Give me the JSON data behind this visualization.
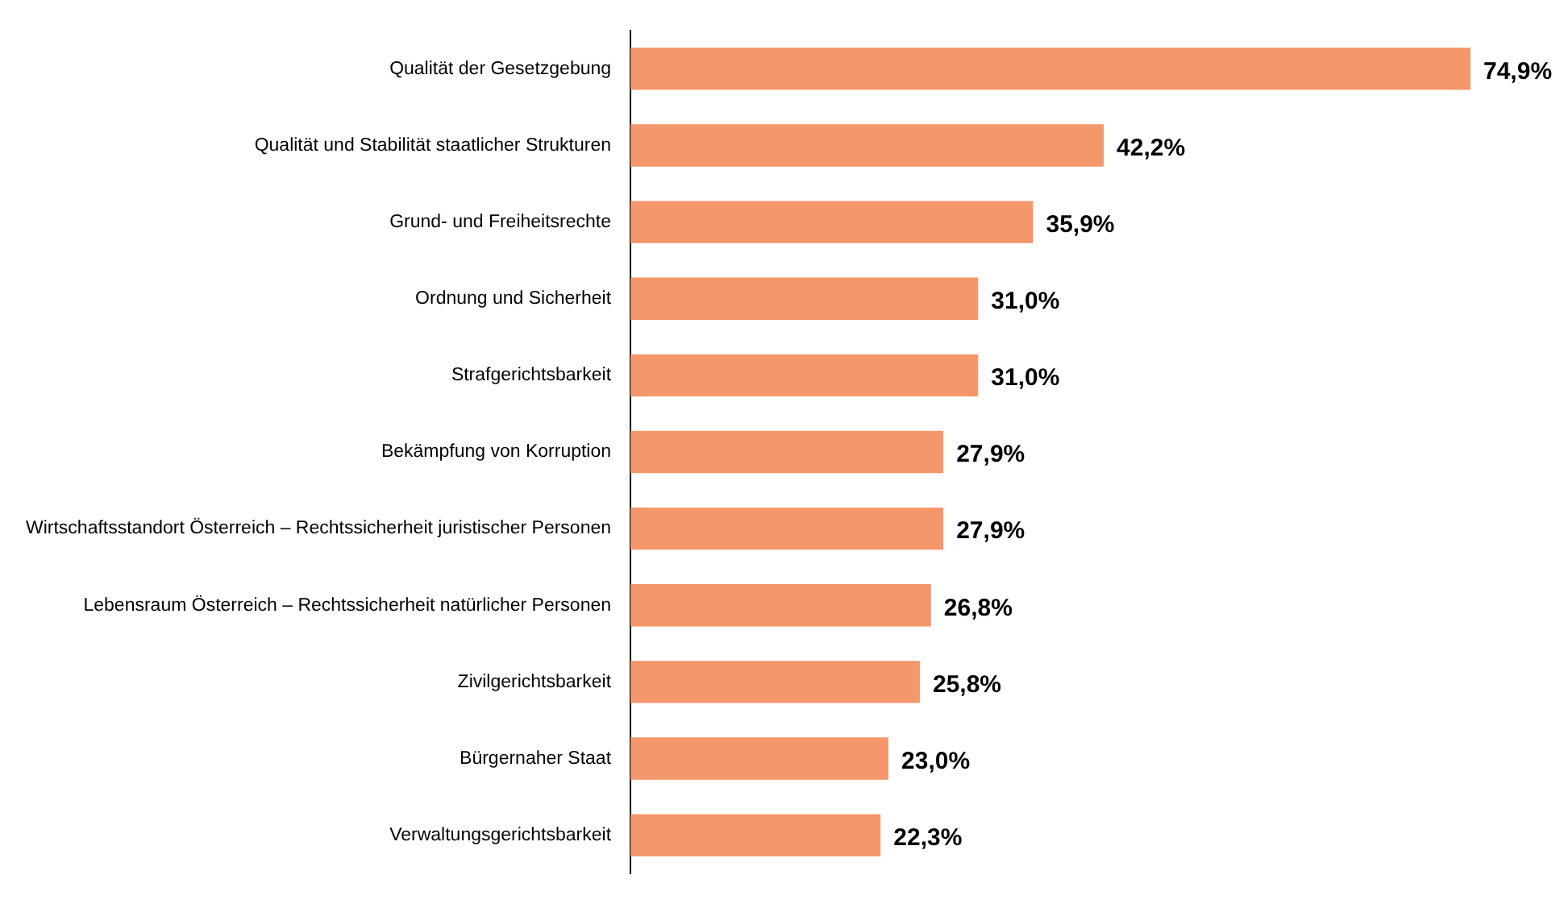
{
  "chart_data": {
    "type": "bar",
    "orientation": "horizontal",
    "categories": [
      "Qualität der Gesetzgebung",
      "Qualität und Stabilität staatlicher Strukturen",
      "Grund- und Freiheitsrechte",
      "Ordnung und Sicherheit",
      "Strafgerichtsbarkeit",
      "Bekämpfung von Korruption",
      "Wirtschaftsstandort Österreich – Rechtssicherheit juristischer Personen",
      "Lebensraum Österreich – Rechtssicherheit natürlicher Personen",
      "Zivilgerichtsbarkeit",
      "Bürgernaher Staat",
      "Verwaltungsgerichtsbarkeit"
    ],
    "values": [
      74.9,
      42.2,
      35.9,
      31.0,
      31.0,
      27.9,
      27.9,
      26.8,
      25.8,
      23.0,
      22.3
    ],
    "value_labels": [
      "74,9%",
      "42,2%",
      "35,9%",
      "31,0%",
      "31,0%",
      "27,9%",
      "27,9%",
      "26,8%",
      "25,8%",
      "23,0%",
      "22,3%"
    ],
    "color": "#f4976a"
  }
}
